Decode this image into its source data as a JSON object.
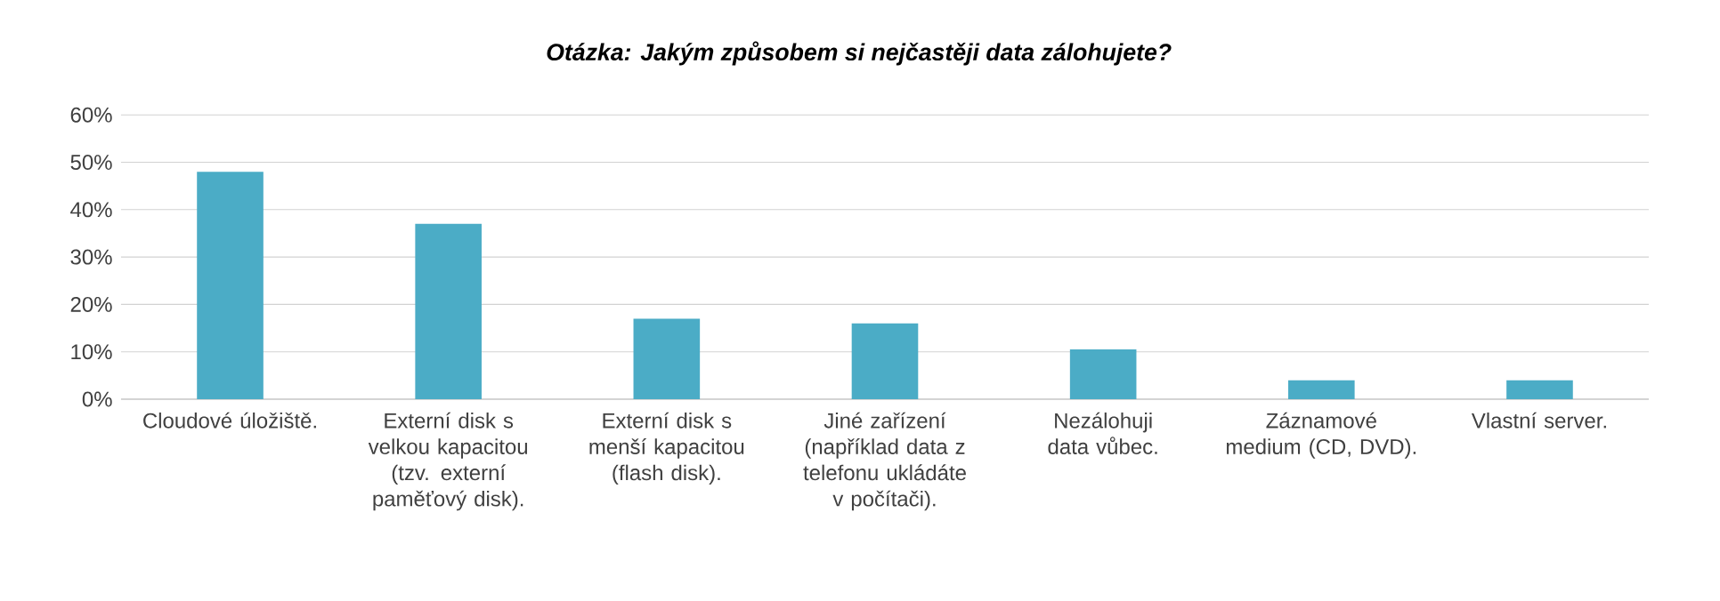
{
  "chart_data": {
    "type": "bar",
    "title": "Otázka: Jakým způsobem si nejčastěji data zálohujete?",
    "categories": [
      "Cloudové úložiště.",
      "Externí disk s velkou kapacitou (tzv. externí paměťový disk).",
      "Externí disk s menší kapacitou (flash disk).",
      "Jiné zařízení (například data z telefonu ukládáte v počítači).",
      "Nezálohuji data vůbec.",
      "Záznamové medium (CD, DVD).",
      "Vlastní server."
    ],
    "values": [
      48,
      37,
      17,
      16,
      10.5,
      4,
      4
    ],
    "color": "#4bacc6",
    "ylim": [
      0,
      60
    ],
    "yticks": [
      {
        "value": 0,
        "label": "0%"
      },
      {
        "value": 10,
        "label": "10%"
      },
      {
        "value": 20,
        "label": "20%"
      },
      {
        "value": 30,
        "label": "30%"
      },
      {
        "value": 40,
        "label": "40%"
      },
      {
        "value": 50,
        "label": "50%"
      },
      {
        "value": 60,
        "label": "60%"
      }
    ],
    "grid": "y"
  }
}
